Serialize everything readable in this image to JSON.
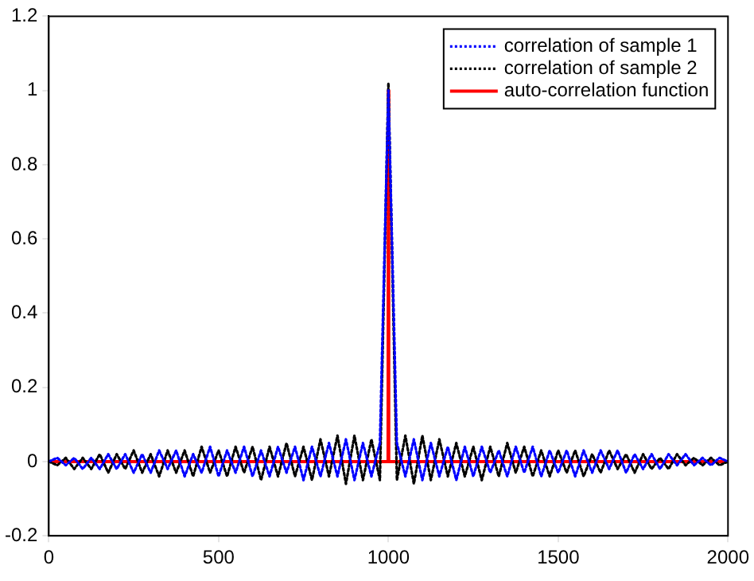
{
  "chart_data": {
    "type": "line",
    "x": [
      0,
      25,
      50,
      75,
      100,
      125,
      150,
      175,
      200,
      225,
      250,
      275,
      300,
      325,
      350,
      375,
      400,
      425,
      450,
      475,
      500,
      525,
      550,
      575,
      600,
      625,
      650,
      675,
      700,
      725,
      750,
      775,
      800,
      825,
      850,
      875,
      900,
      925,
      950,
      975,
      1000,
      1025,
      1050,
      1075,
      1100,
      1125,
      1150,
      1175,
      1200,
      1225,
      1250,
      1275,
      1300,
      1325,
      1350,
      1375,
      1400,
      1425,
      1450,
      1475,
      1500,
      1525,
      1550,
      1575,
      1600,
      1625,
      1650,
      1675,
      1700,
      1725,
      1750,
      1775,
      1800,
      1825,
      1850,
      1875,
      1900,
      1925,
      1950,
      1975,
      2000
    ],
    "series": [
      {
        "name": "correlation of sample 1",
        "color": "#0000ff",
        "line_style": "dotted",
        "values": [
          0,
          0.01,
          -0.01,
          0.01,
          -0.02,
          0.01,
          -0.02,
          0.02,
          -0.02,
          0.02,
          -0.03,
          0.02,
          -0.03,
          0.03,
          -0.02,
          0.03,
          -0.04,
          0.02,
          -0.03,
          0.04,
          -0.04,
          0.03,
          -0.03,
          0.04,
          -0.04,
          0.03,
          -0.04,
          0.04,
          -0.03,
          0.04,
          -0.05,
          0.04,
          -0.04,
          0.05,
          -0.04,
          0.06,
          -0.05,
          0.05,
          -0.04,
          0.05,
          1,
          0.05,
          -0.04,
          0.06,
          -0.05,
          0.05,
          -0.04,
          0.04,
          -0.05,
          0.04,
          -0.04,
          0.04,
          -0.03,
          0.03,
          -0.04,
          0.04,
          -0.03,
          0.04,
          -0.04,
          0.03,
          -0.03,
          0.03,
          -0.04,
          0.03,
          -0.03,
          0.03,
          -0.02,
          0.03,
          -0.03,
          0.02,
          -0.02,
          0.02,
          -0.02,
          0.02,
          -0.01,
          0.02,
          -0.01,
          0.01,
          -0.01,
          0.01,
          0
        ]
      },
      {
        "name": "correlation of sample 2",
        "color": "#000000",
        "line_style": "dotted",
        "values": [
          0,
          -0.01,
          0.01,
          -0.02,
          0.01,
          -0.02,
          0.02,
          -0.03,
          0.02,
          -0.02,
          0.03,
          -0.03,
          0.02,
          -0.04,
          0.03,
          -0.03,
          0.03,
          -0.04,
          0.04,
          -0.03,
          0.03,
          -0.04,
          0.04,
          -0.03,
          0.04,
          -0.05,
          0.04,
          -0.04,
          0.05,
          -0.04,
          0.04,
          -0.05,
          0.06,
          -0.04,
          0.07,
          -0.06,
          0.07,
          -0.05,
          0.06,
          -0.05,
          1.02,
          -0.05,
          0.07,
          -0.06,
          0.07,
          -0.05,
          0.06,
          -0.04,
          0.05,
          -0.04,
          0.04,
          -0.05,
          0.04,
          -0.04,
          0.05,
          -0.03,
          0.04,
          -0.04,
          0.03,
          -0.04,
          0.03,
          -0.03,
          0.03,
          -0.04,
          0.02,
          -0.03,
          0.03,
          -0.02,
          0.02,
          -0.03,
          0.02,
          -0.02,
          0.01,
          -0.02,
          0.02,
          -0.01,
          0.01,
          -0.01,
          0.01,
          -0.01,
          0
        ]
      },
      {
        "name": "auto-correlation function",
        "color": "#ff0000",
        "line_style": "solid",
        "x": [
          0,
          999,
          1000,
          1001,
          2000
        ],
        "values": [
          0,
          0,
          1,
          0,
          0
        ]
      }
    ],
    "xlim": [
      0,
      2000
    ],
    "xticks": [
      0,
      500,
      1000,
      1500,
      2000
    ],
    "ylim": [
      -0.2,
      1.2
    ],
    "yticks": [
      -0.2,
      0,
      0.2,
      0.4,
      0.6,
      0.8,
      1,
      1.2
    ],
    "grid": false,
    "legend": "top right",
    "marker": "none"
  }
}
